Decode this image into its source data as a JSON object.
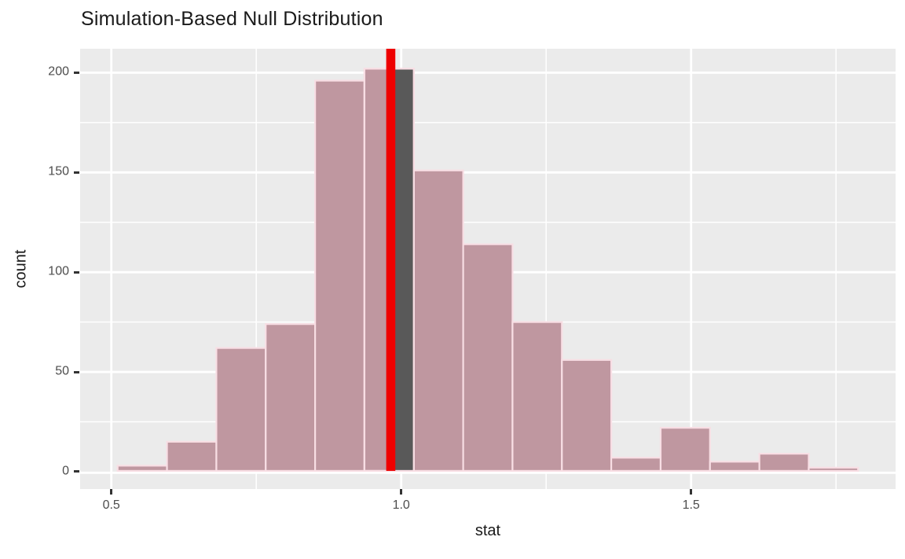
{
  "chart_data": {
    "type": "bar",
    "subtype": "simulation-null-distribution-histogram",
    "title": "Simulation-Based Null Distribution",
    "xlabel": "stat",
    "ylabel": "count",
    "xlim": [
      0.4462,
      1.8527
    ],
    "ylim": [
      -8.7,
      212
    ],
    "grid": true,
    "legend": "none",
    "bin_edges": [
      0.5109,
      0.596,
      0.6812,
      0.7663,
      0.8515,
      0.9366,
      1.0218,
      1.1069,
      1.192,
      1.2772,
      1.3623,
      1.4475,
      1.5326,
      1.6178,
      1.7029,
      1.788
    ],
    "counts": [
      3,
      15,
      62,
      74,
      196,
      202,
      151,
      114,
      75,
      56,
      7,
      22,
      5,
      9,
      2
    ],
    "observed_stat": 0.982,
    "unshaded_segment": {
      "from": 0.982,
      "to": 1.0218,
      "count": 202
    },
    "x_ticks": [
      {
        "v": 0.5,
        "label": "0.5"
      },
      {
        "v": 1.0,
        "label": "1.0"
      },
      {
        "v": 1.5,
        "label": "1.5"
      }
    ],
    "x_minor_ticks": [
      0.75,
      1.25,
      1.75
    ],
    "y_ticks": [
      {
        "v": 0,
        "label": "0"
      },
      {
        "v": 50,
        "label": "50"
      },
      {
        "v": 100,
        "label": "100"
      },
      {
        "v": 150,
        "label": "150"
      },
      {
        "v": 200,
        "label": "200"
      }
    ],
    "y_minor_ticks": [
      25,
      75,
      125,
      175
    ]
  },
  "colors": {
    "bar_fill": "#BF97A0",
    "bar_border": "#F8DEE4",
    "dark_segment_fill": "#595959",
    "observed_line": "#EE0000",
    "panel_background": "#EBEBEB",
    "gridline": "#FFFFFF",
    "tick_mark": "#333333",
    "tick_label": "#4D4D4D",
    "text": "#1A1A1A",
    "figure_background": "#FFFFFF"
  }
}
